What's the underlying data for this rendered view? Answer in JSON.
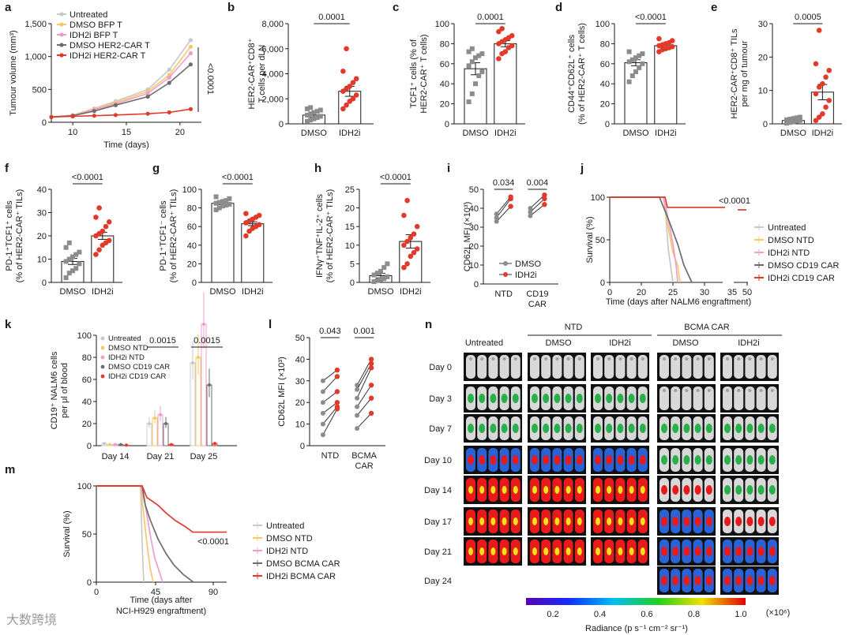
{
  "panel_letters": [
    "a",
    "b",
    "c",
    "d",
    "e",
    "f",
    "g",
    "h",
    "i",
    "j",
    "k",
    "l",
    "m",
    "n"
  ],
  "colors": {
    "gray": "#8c8c8c",
    "red": "#e03a2a",
    "light_gray": "#c8c8c8",
    "yellow": "#f3c96a",
    "pink": "#ee9ccb",
    "dark_gray": "#6d6d6d"
  },
  "chart_data": [
    {
      "panel": "a",
      "type": "line",
      "xlabel": "Time (days)",
      "ylabel": "Tumour volume (mm³)",
      "ylim": [
        0,
        1500
      ],
      "xlim": [
        8,
        22
      ],
      "yticks": [
        "0",
        "500",
        "1,000",
        "1,500"
      ],
      "xticks": [
        "10",
        "15",
        "20"
      ],
      "pvalue": "<0.0001",
      "x": [
        8,
        10,
        12,
        14,
        17,
        19,
        21
      ],
      "series": [
        {
          "name": "Untreated",
          "color": "#c8c8c8",
          "values": [
            80,
            110,
            210,
            320,
            500,
            800,
            1250
          ]
        },
        {
          "name": "DMSO BFP T",
          "color": "#f3c96a",
          "values": [
            80,
            105,
            200,
            300,
            470,
            720,
            1150
          ]
        },
        {
          "name": "IDH2i BFP T",
          "color": "#ee9ccb",
          "values": [
            80,
            100,
            190,
            280,
            440,
            680,
            1050
          ]
        },
        {
          "name": "DMSO HER2-CAR T",
          "color": "#6d6d6d",
          "values": [
            80,
            100,
            170,
            260,
            390,
            600,
            880
          ]
        },
        {
          "name": "IDH2i HER2-CAR T",
          "color": "#e03a2a",
          "values": [
            80,
            90,
            100,
            110,
            130,
            150,
            200
          ]
        }
      ]
    },
    {
      "panel": "b",
      "type": "bar",
      "categories": [
        "DMSO",
        "IDH2i"
      ],
      "values": [
        700,
        2600
      ],
      "errors": [
        150,
        400
      ],
      "ylim": [
        0,
        8000
      ],
      "yticks": [
        "0",
        "2,000",
        "4,000",
        "6,000",
        "8,000"
      ],
      "ylabel": [
        "HER2-CAR⁺CD8⁺",
        "T cells per dLN"
      ],
      "pvalue": "0.0001",
      "points": [
        [
          200,
          300,
          400,
          500,
          600,
          700,
          800,
          900,
          1000,
          1100,
          1200,
          1300
        ],
        [
          1200,
          1500,
          1800,
          2000,
          2300,
          2600,
          2800,
          3000,
          3300,
          3600,
          4200,
          6000
        ]
      ]
    },
    {
      "panel": "c",
      "type": "bar",
      "categories": [
        "DMSO",
        "IDH2i"
      ],
      "values": [
        55,
        80
      ],
      "errors": [
        6,
        3
      ],
      "ylim": [
        0,
        100
      ],
      "yticks": [
        "0",
        "20",
        "40",
        "60",
        "80",
        "100"
      ],
      "ylabel": [
        "TCF1⁺ cells (% of",
        "HER2-CAR⁺ T cells)"
      ],
      "pvalue": "0.0001",
      "points": [
        [
          22,
          30,
          40,
          48,
          52,
          58,
          62,
          66,
          68,
          70,
          72,
          75
        ],
        [
          65,
          70,
          72,
          76,
          78,
          80,
          82,
          84,
          86,
          88,
          92,
          95
        ]
      ]
    },
    {
      "panel": "d",
      "type": "bar",
      "categories": [
        "DMSO",
        "IDH2i"
      ],
      "values": [
        61,
        78
      ],
      "errors": [
        3,
        1.5
      ],
      "ylim": [
        0,
        100
      ],
      "yticks": [
        "0",
        "20",
        "40",
        "60",
        "80",
        "100"
      ],
      "ylabel": [
        "CD44⁺CD62L⁺ cells",
        "(% of HER2-CAR⁺ T cells)"
      ],
      "pvalue": "<0.0001",
      "points": [
        [
          42,
          48,
          52,
          56,
          60,
          62,
          64,
          66,
          68,
          70,
          72
        ],
        [
          72,
          74,
          75,
          76,
          77,
          78,
          79,
          80,
          81,
          83,
          85
        ]
      ]
    },
    {
      "panel": "e",
      "type": "bar",
      "categories": [
        "DMSO",
        "IDH2i"
      ],
      "values": [
        1,
        9.5
      ],
      "errors": [
        0.3,
        2.3
      ],
      "ylim": [
        0,
        30
      ],
      "yticks": [
        "0",
        "10",
        "20",
        "30"
      ],
      "ylabel": [
        "HER2-CAR⁺CD8⁺ TILs",
        "per mg of tumour"
      ],
      "pvalue": "0.0005",
      "points": [
        [
          0.2,
          0.4,
          0.6,
          0.8,
          1,
          1.2,
          1.4,
          1.6,
          1.8,
          2
        ],
        [
          1,
          2,
          3,
          5,
          7,
          9,
          11,
          12,
          14,
          16,
          18,
          28
        ]
      ]
    },
    {
      "panel": "f",
      "type": "bar",
      "categories": [
        "DMSO",
        "IDH2i"
      ],
      "values": [
        9,
        20
      ],
      "errors": [
        1.3,
        1.5
      ],
      "ylim": [
        0,
        40
      ],
      "yticks": [
        "0",
        "10",
        "20",
        "30",
        "40"
      ],
      "ylabel": [
        "PD-1⁺TCF1⁺ cells",
        "(% of HER2-CAR⁺ TILs)"
      ],
      "pvalue": "<0.0001",
      "points": [
        [
          2,
          4,
          5,
          6,
          8,
          9,
          10,
          11,
          12,
          13,
          15,
          17
        ],
        [
          12,
          14,
          16,
          17,
          18,
          20,
          21,
          22,
          24,
          26,
          28,
          32
        ]
      ]
    },
    {
      "panel": "g",
      "type": "bar",
      "categories": [
        "DMSO",
        "IDH2i"
      ],
      "values": [
        85,
        63
      ],
      "errors": [
        1.5,
        2
      ],
      "ylim": [
        0,
        100
      ],
      "yticks": [
        "0",
        "20",
        "40",
        "60",
        "80",
        "100"
      ],
      "ylabel": [
        "PD-1⁺TCF1⁻ cells",
        "(% of HER2-CAR⁺ TILs)"
      ],
      "pvalue": "<0.0001",
      "points": [
        [
          78,
          80,
          82,
          83,
          84,
          85,
          86,
          87,
          88,
          90,
          92
        ],
        [
          50,
          55,
          58,
          60,
          62,
          64,
          66,
          68,
          70,
          72,
          74
        ]
      ]
    },
    {
      "panel": "h",
      "type": "bar",
      "categories": [
        "DMSO",
        "IDH2i"
      ],
      "values": [
        1.8,
        11
      ],
      "errors": [
        0.6,
        1.8
      ],
      "ylim": [
        0,
        25
      ],
      "yticks": [
        "0",
        "5",
        "10",
        "15",
        "20",
        "25"
      ],
      "ylabel": [
        "IFNγ⁺TNF⁺IL-2⁺ cells",
        "(% of HER2-CAR⁺ TILs)"
      ],
      "pvalue": "<0.0001",
      "points": [
        [
          0.2,
          0.5,
          0.8,
          1,
          1.5,
          2,
          2.5,
          3,
          4,
          5
        ],
        [
          4,
          5,
          7,
          8,
          9,
          10,
          11,
          12,
          13,
          15,
          18,
          22
        ]
      ]
    },
    {
      "panel": "i",
      "type": "scatter",
      "categories": [
        "NTD",
        "CD19 CAR"
      ],
      "ylim": [
        0,
        50
      ],
      "yticks": [
        "0",
        "10",
        "20",
        "30",
        "40",
        "50"
      ],
      "ylabel": "CD62L MFI (×10³)",
      "pvalues": [
        "0.034",
        "0.004"
      ],
      "legend": [
        "DMSO",
        "IDH2i"
      ],
      "pairs": [
        [
          [
            33,
            41
          ],
          [
            35,
            45
          ],
          [
            37,
            46
          ]
        ],
        [
          [
            36,
            42
          ],
          [
            38,
            45
          ],
          [
            40,
            47
          ]
        ]
      ]
    },
    {
      "panel": "j",
      "type": "line",
      "xlabel": "Time (days after NALM6 engraftment)",
      "ylabel": "Survival (%)",
      "ylim": [
        0,
        100
      ],
      "yticks": [
        "0",
        "50",
        "100"
      ],
      "xticks": [
        "0",
        "20",
        "25",
        "30",
        "35",
        "50"
      ],
      "pvalue": "<0.0001",
      "legend": [
        "Untreated",
        "DMSO NTD",
        "IDH2i NTD",
        "DMSO CD19 CAR",
        "IDH2i CD19 CAR"
      ]
    },
    {
      "panel": "k",
      "type": "bar",
      "categories": [
        "Day 14",
        "Day 21",
        "Day 25"
      ],
      "ylim": [
        0,
        100
      ],
      "yticks": [
        "0",
        "20",
        "40",
        "60",
        "80",
        "100"
      ],
      "ylabel": [
        "CD19⁺ NALM6 cells",
        "per μl of blood"
      ],
      "pvalues": [
        "0.0015",
        "0.0015"
      ],
      "series": [
        {
          "name": "Untreated",
          "color": "#c8c8c8",
          "values": [
            2,
            20,
            75
          ]
        },
        {
          "name": "DMSO NTD",
          "color": "#f3c96a",
          "values": [
            1,
            25,
            80
          ]
        },
        {
          "name": "IDH2i NTD",
          "color": "#ee9ccb",
          "values": [
            1,
            28,
            110
          ]
        },
        {
          "name": "DMSO CD19 CAR",
          "color": "#6d6d6d",
          "values": [
            1,
            20,
            55
          ]
        },
        {
          "name": "IDH2i CD19 CAR",
          "color": "#e03a2a",
          "values": [
            0.5,
            1,
            2
          ]
        }
      ]
    },
    {
      "panel": "l",
      "type": "scatter",
      "categories": [
        "NTD",
        "BCMA CAR"
      ],
      "ylim": [
        0,
        50
      ],
      "yticks": [
        "0",
        "10",
        "20",
        "30",
        "40",
        "50"
      ],
      "ylabel": "CD62L MFI (×10³)",
      "pvalues": [
        "0.043",
        "0.001"
      ],
      "pairs": [
        [
          [
            30,
            35
          ],
          [
            25,
            32
          ],
          [
            20,
            25
          ],
          [
            15,
            20
          ],
          [
            10,
            18
          ],
          [
            5,
            17
          ]
        ],
        [
          [
            28,
            40
          ],
          [
            26,
            38
          ],
          [
            22,
            36
          ],
          [
            18,
            28
          ],
          [
            14,
            22
          ],
          [
            8,
            15
          ]
        ]
      ]
    },
    {
      "panel": "m",
      "type": "line",
      "xlabel": [
        "Time (days after",
        "NCI-H929 engraftment)"
      ],
      "ylabel": "Survival (%)",
      "ylim": [
        0,
        100
      ],
      "yticks": [
        "0",
        "50",
        "100"
      ],
      "xticks": [
        "0",
        "45",
        "90"
      ],
      "pvalue": "<0.0001",
      "legend": [
        "Untreated",
        "DMSO NTD",
        "IDH2i NTD",
        "DMSO BCMA CAR",
        "IDH2i BCMA CAR"
      ]
    }
  ],
  "panel_n": {
    "groups": {
      "untreated": "Untreated",
      "ntd": "NTD",
      "bcma": "BCMA CAR",
      "dmso": "DMSO",
      "idh2i": "IDH2i"
    },
    "days": [
      "Day 0",
      "Day 3",
      "Day 7",
      "Day 10",
      "Day 14",
      "Day 17",
      "Day 21",
      "Day 24"
    ],
    "colorbar": {
      "ticks": [
        "0.2",
        "0.4",
        "0.6",
        "0.8",
        "1.0"
      ],
      "unit": "(×10⁶)",
      "label": "Radiance (p s⁻¹ cm⁻² sr⁻¹)"
    }
  },
  "watermark": "大数跨境"
}
